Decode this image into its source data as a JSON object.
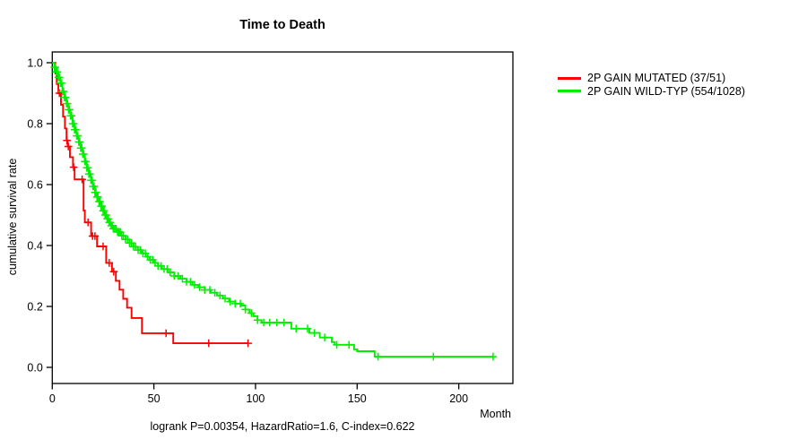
{
  "title": "Time to Death",
  "chart_data": {
    "type": "line",
    "subtype": "kaplan-meier-step",
    "title": "Time to Death",
    "xlabel": "Month",
    "ylabel": "cumulative survival rate",
    "annotation": "logrank P=0.00354, HazardRatio=1.6, C-index=0.622",
    "xlim": [
      0,
      227
    ],
    "ylim": [
      0.0,
      1.0
    ],
    "x_ticks": [
      0,
      50,
      100,
      150,
      200
    ],
    "y_ticks": [
      0.0,
      0.2,
      0.4,
      0.6,
      0.8,
      1.0
    ],
    "grid": false,
    "legend_position": "right-outside",
    "series": [
      {
        "name": "2P GAIN MUTATED (37/51)",
        "color": "#ff0000",
        "events": "37/51",
        "steps": [
          [
            0,
            1.0
          ],
          [
            1.5,
            0.965
          ],
          [
            2.2,
            0.93
          ],
          [
            3,
            0.9
          ],
          [
            4.3,
            0.862
          ],
          [
            5.3,
            0.823
          ],
          [
            6.2,
            0.784
          ],
          [
            7,
            0.745
          ],
          [
            7.6,
            0.725
          ],
          [
            8.7,
            0.69
          ],
          [
            10.2,
            0.657
          ],
          [
            11,
            0.617
          ],
          [
            15.4,
            0.515
          ],
          [
            16,
            0.476
          ],
          [
            19.1,
            0.431
          ],
          [
            22,
            0.397
          ],
          [
            26.5,
            0.343
          ],
          [
            29.4,
            0.314
          ],
          [
            31.3,
            0.284
          ],
          [
            33.1,
            0.255
          ],
          [
            34.9,
            0.225
          ],
          [
            36.8,
            0.196
          ],
          [
            39,
            0.162
          ],
          [
            44.1,
            0.112
          ],
          [
            59.5,
            0.079
          ],
          [
            96.3,
            0.079
          ]
        ],
        "censor_months": [
          3.5,
          7.2,
          7.9,
          10.5,
          14.7,
          17.6,
          19.8,
          21,
          25,
          28,
          30.2,
          56,
          77,
          96.3
        ]
      },
      {
        "name": "2P GAIN WILD-TYP (554/1028)",
        "color": "#00ee00",
        "events": "554/1028",
        "steps": [
          [
            0,
            1.0
          ],
          [
            1,
            0.985
          ],
          [
            2,
            0.97
          ],
          [
            3,
            0.952
          ],
          [
            4,
            0.933
          ],
          [
            5,
            0.906
          ],
          [
            6,
            0.886
          ],
          [
            7,
            0.866
          ],
          [
            8,
            0.846
          ],
          [
            9,
            0.826
          ],
          [
            10,
            0.8
          ],
          [
            11,
            0.78
          ],
          [
            12,
            0.76
          ],
          [
            13,
            0.74
          ],
          [
            14,
            0.72
          ],
          [
            15,
            0.7
          ],
          [
            16,
            0.676
          ],
          [
            17,
            0.655
          ],
          [
            18,
            0.635
          ],
          [
            19,
            0.614
          ],
          [
            20,
            0.594
          ],
          [
            21,
            0.574
          ],
          [
            22,
            0.559
          ],
          [
            23,
            0.544
          ],
          [
            24,
            0.529
          ],
          [
            25,
            0.514
          ],
          [
            26,
            0.5
          ],
          [
            27,
            0.488
          ],
          [
            28,
            0.476
          ],
          [
            29,
            0.465
          ],
          [
            30,
            0.455
          ],
          [
            32,
            0.444
          ],
          [
            34,
            0.432
          ],
          [
            36,
            0.42
          ],
          [
            38,
            0.408
          ],
          [
            40,
            0.396
          ],
          [
            42,
            0.385
          ],
          [
            44,
            0.374
          ],
          [
            46,
            0.363
          ],
          [
            48,
            0.353
          ],
          [
            50,
            0.343
          ],
          [
            52,
            0.333
          ],
          [
            54,
            0.323
          ],
          [
            57,
            0.312
          ],
          [
            60,
            0.3
          ],
          [
            63,
            0.291
          ],
          [
            66,
            0.281
          ],
          [
            69,
            0.271
          ],
          [
            72,
            0.263
          ],
          [
            75,
            0.254
          ],
          [
            78,
            0.245
          ],
          [
            81,
            0.236
          ],
          [
            84,
            0.226
          ],
          [
            87,
            0.216
          ],
          [
            90,
            0.209
          ],
          [
            93,
            0.203
          ],
          [
            95,
            0.19
          ],
          [
            97,
            0.178
          ],
          [
            99,
            0.168
          ],
          [
            101,
            0.155
          ],
          [
            103,
            0.147
          ],
          [
            117.6,
            0.127
          ],
          [
            126.5,
            0.113
          ],
          [
            131.6,
            0.098
          ],
          [
            137.5,
            0.083
          ],
          [
            139,
            0.074
          ],
          [
            148.5,
            0.059
          ],
          [
            150,
            0.053
          ],
          [
            158.6,
            0.035
          ],
          [
            216.9,
            0.035
          ]
        ],
        "censor_months": [
          1,
          1.5,
          2,
          2.5,
          3,
          3.5,
          4,
          4.5,
          5,
          5.5,
          6,
          6.5,
          7,
          7.5,
          8,
          8.5,
          9,
          9.5,
          10,
          10.5,
          11,
          11.5,
          12,
          12.5,
          13,
          13.5,
          14,
          14.5,
          15,
          15.5,
          16,
          16.5,
          17,
          17.5,
          18,
          18.5,
          19,
          19.5,
          20,
          20.5,
          21,
          21.5,
          22,
          22.5,
          23,
          23.5,
          24,
          24.5,
          25,
          25.5,
          26,
          26.5,
          27,
          27.5,
          28,
          28.5,
          29,
          29.5,
          30,
          30.7,
          31.4,
          32.1,
          32.8,
          33.5,
          34.2,
          35,
          36,
          37,
          38,
          39,
          40,
          41,
          42.2,
          43.4,
          44.6,
          45.8,
          47,
          48.2,
          49.4,
          50.6,
          52,
          53.5,
          55,
          56.5,
          58,
          60,
          62,
          64,
          66,
          68,
          70,
          72.5,
          75,
          77.5,
          80,
          82.5,
          85,
          87.5,
          90,
          92.5,
          95,
          98,
          101,
          104,
          107,
          110.5,
          114,
          120,
          125.6,
          129,
          134,
          140,
          146,
          160.3,
          187.5,
          216.9
        ]
      }
    ]
  }
}
